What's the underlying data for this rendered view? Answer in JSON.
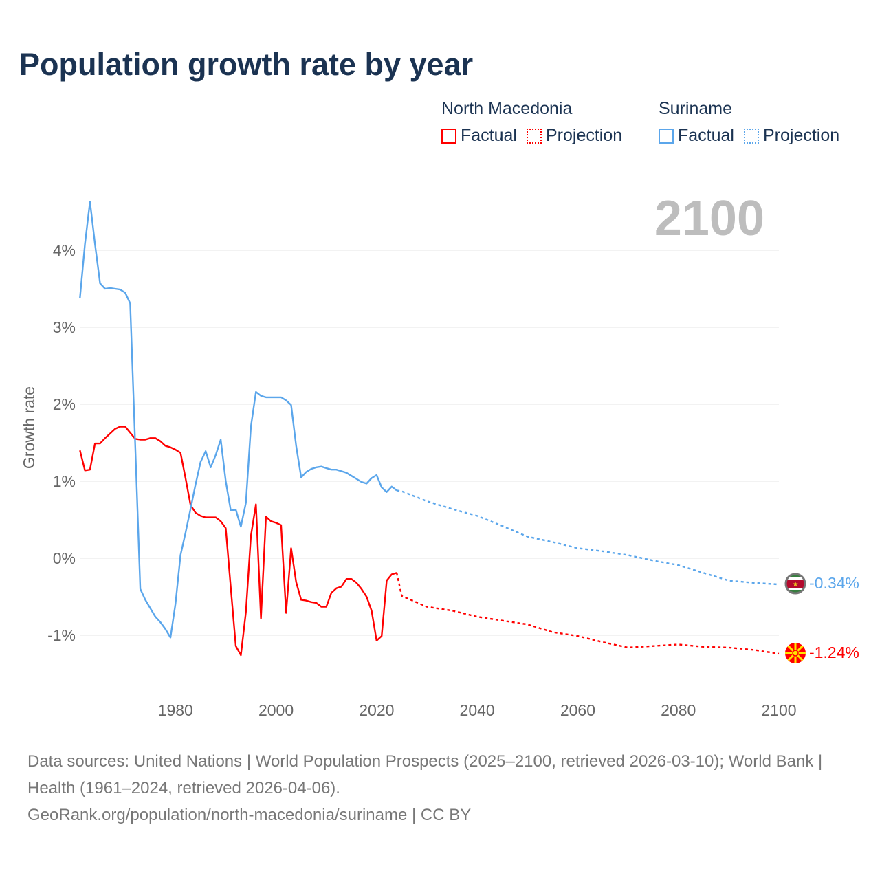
{
  "title": "Population growth rate by year",
  "legend": {
    "groups": [
      {
        "country": "North Macedonia",
        "factual": "Factual",
        "projection": "Projection",
        "color": "#ff0000"
      },
      {
        "country": "Suriname",
        "factual": "Factual",
        "projection": "Projection",
        "color": "#5ba6eb"
      }
    ]
  },
  "year_label": "2100",
  "end_labels": {
    "suriname": "-0.34%",
    "north_macedonia": "-1.24%"
  },
  "footer": {
    "line1": "Data sources: United Nations | World Population Prospects (2025–2100, retrieved 2026-03-10); World Bank | Health (1961–2024, retrieved 2026-04-06).",
    "line2": "GeoRank.org/population/north-macedonia/suriname | CC BY"
  },
  "chart_data": {
    "type": "line",
    "title": "Population growth rate by year",
    "xlabel": "",
    "ylabel": "Growth rate",
    "xlim": [
      1961,
      2100
    ],
    "ylim": [
      -1.6,
      4.8
    ],
    "x_ticks": [
      1980,
      2000,
      2020,
      2040,
      2060,
      2080,
      2100
    ],
    "x_tick_labels": [
      "1980",
      "2000",
      "2020",
      "2040",
      "2060",
      "2080",
      "2100"
    ],
    "y_ticks": [
      -1,
      0,
      1,
      2,
      3,
      4
    ],
    "y_tick_labels": [
      "-1%",
      "0%",
      "1%",
      "2%",
      "3%",
      "4%"
    ],
    "grid": true,
    "legend_position": "top-right",
    "series": [
      {
        "name": "North Macedonia",
        "color": "#ff0000",
        "factual": {
          "start_year": 1961,
          "values": [
            1.4,
            1.14,
            1.15,
            1.49,
            1.49,
            1.56,
            1.62,
            1.68,
            1.71,
            1.71,
            1.63,
            1.55,
            1.54,
            1.54,
            1.56,
            1.56,
            1.52,
            1.46,
            1.44,
            1.41,
            1.37,
            1.04,
            0.69,
            0.59,
            0.55,
            0.53,
            0.53,
            0.53,
            0.48,
            0.39,
            -0.38,
            -1.14,
            -1.26,
            -0.7,
            0.29,
            0.7,
            -0.78,
            0.54,
            0.48,
            0.46,
            0.43,
            -0.71,
            0.13,
            -0.31,
            -0.54,
            -0.55,
            -0.57,
            -0.58,
            -0.63,
            -0.63,
            -0.45,
            -0.39,
            -0.37,
            -0.27,
            -0.27,
            -0.32,
            -0.4,
            -0.5,
            -0.68,
            -1.07,
            -1.01,
            -0.29,
            -0.21,
            -0.19
          ]
        },
        "projection": {
          "years": [
            2024,
            2025,
            2030,
            2035,
            2040,
            2045,
            2050,
            2055,
            2060,
            2065,
            2070,
            2075,
            2080,
            2085,
            2090,
            2095,
            2100
          ],
          "values": [
            -0.19,
            -0.49,
            -0.63,
            -0.68,
            -0.76,
            -0.81,
            -0.86,
            -0.96,
            -1.01,
            -1.09,
            -1.16,
            -1.14,
            -1.12,
            -1.15,
            -1.16,
            -1.19,
            -1.24
          ]
        }
      },
      {
        "name": "Suriname",
        "color": "#5ba6eb",
        "factual": {
          "start_year": 1961,
          "values": [
            3.38,
            4.08,
            4.63,
            4.08,
            3.57,
            3.5,
            3.51,
            3.5,
            3.49,
            3.45,
            3.31,
            1.45,
            -0.4,
            -0.54,
            -0.65,
            -0.76,
            -0.83,
            -0.92,
            -1.03,
            -0.59,
            0.04,
            0.33,
            0.64,
            0.96,
            1.25,
            1.39,
            1.18,
            1.34,
            1.54,
            1.0,
            0.62,
            0.63,
            0.41,
            0.72,
            1.71,
            2.16,
            2.11,
            2.09,
            2.09,
            2.09,
            2.09,
            2.05,
            1.99,
            1.46,
            1.05,
            1.12,
            1.16,
            1.18,
            1.19,
            1.17,
            1.15,
            1.15,
            1.13,
            1.11,
            1.07,
            1.03,
            0.99,
            0.97,
            1.04,
            1.08,
            0.92,
            0.86,
            0.93,
            0.88
          ]
        },
        "projection": {
          "years": [
            2024,
            2025,
            2030,
            2035,
            2040,
            2045,
            2050,
            2055,
            2060,
            2065,
            2070,
            2075,
            2080,
            2085,
            2090,
            2095,
            2100
          ],
          "values": [
            0.88,
            0.87,
            0.74,
            0.64,
            0.55,
            0.42,
            0.28,
            0.21,
            0.13,
            0.09,
            0.04,
            -0.03,
            -0.09,
            -0.19,
            -0.29,
            -0.32,
            -0.34
          ]
        }
      }
    ]
  }
}
